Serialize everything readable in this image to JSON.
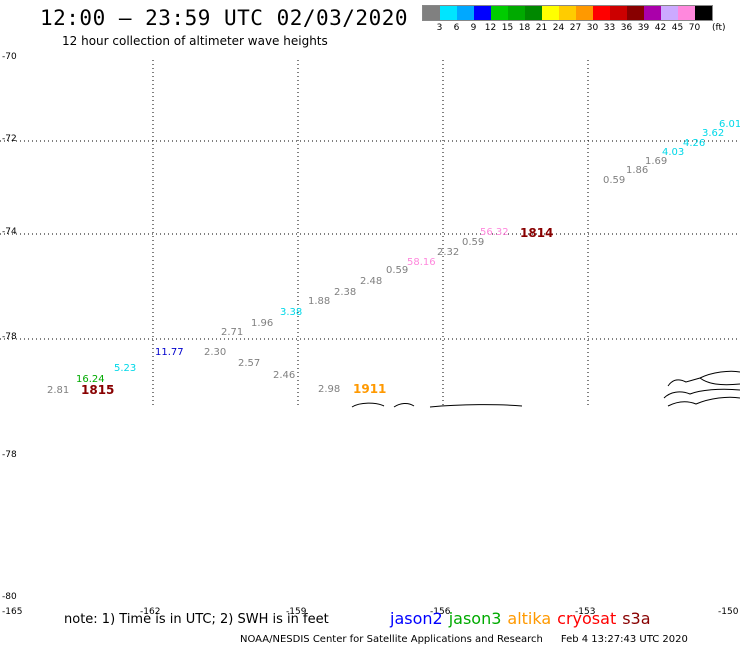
{
  "header": {
    "title": "12:00 – 23:59 UTC 02/03/2020",
    "subtitle": "12 hour collection of altimeter wave heights"
  },
  "legend": {
    "colors": [
      "#808080",
      "#00e5ff",
      "#00a8ff",
      "#0000ff",
      "#00cc00",
      "#00aa00",
      "#008800",
      "#ffff00",
      "#ffcc00",
      "#ff9900",
      "#ff0000",
      "#cc0000",
      "#880000",
      "#aa00aa",
      "#ccaaff",
      "#ff88dd",
      "#000000"
    ],
    "labels": [
      "3",
      "6",
      "9",
      "12",
      "15",
      "18",
      "21",
      "24",
      "27",
      "30",
      "33",
      "36",
      "39",
      "42",
      "45",
      "70"
    ],
    "unit": "(ft)"
  },
  "axes": {
    "lat_labels": [
      "-70",
      "-72",
      "-74",
      "-78",
      "-78",
      "-80"
    ],
    "lon_labels": [
      "-165",
      "-162",
      "-159",
      "-156",
      "-153",
      "-150"
    ]
  },
  "observations": [
    {
      "text": "2.81",
      "color": "#808080"
    },
    {
      "text": "16.24",
      "color": "#00aa00"
    },
    {
      "text": "5.23",
      "color": "#00d8e8"
    },
    {
      "text": "11.77",
      "color": "#0000cc"
    },
    {
      "text": "2.30",
      "color": "#808080"
    },
    {
      "text": "2.71",
      "color": "#808080"
    },
    {
      "text": "1.96",
      "color": "#808080"
    },
    {
      "text": "3.38",
      "color": "#00d8e8"
    },
    {
      "text": "2.57",
      "color": "#808080"
    },
    {
      "text": "2.46",
      "color": "#808080"
    },
    {
      "text": "1.88",
      "color": "#808080"
    },
    {
      "text": "2.38",
      "color": "#808080"
    },
    {
      "text": "2.48",
      "color": "#808080"
    },
    {
      "text": "0.59",
      "color": "#808080"
    },
    {
      "text": "2.98",
      "color": "#808080"
    },
    {
      "text": "58.16",
      "color": "#ff88dd"
    },
    {
      "text": "2.32",
      "color": "#808080"
    },
    {
      "text": "0.59",
      "color": "#808080"
    },
    {
      "text": "56.32",
      "color": "#ff88dd"
    },
    {
      "text": "0.59",
      "color": "#808080"
    },
    {
      "text": "1.86",
      "color": "#808080"
    },
    {
      "text": "1.69",
      "color": "#808080"
    },
    {
      "text": "4.03",
      "color": "#00d8e8"
    },
    {
      "text": "4.26",
      "color": "#00d8e8"
    },
    {
      "text": "3.62",
      "color": "#00d8e8"
    },
    {
      "text": "6.01",
      "color": "#00d8e8"
    }
  ],
  "passes": [
    {
      "text": "1815",
      "color": "#880000"
    },
    {
      "text": "1911",
      "color": "#ff9900"
    },
    {
      "text": "1814",
      "color": "#880000"
    }
  ],
  "footer": {
    "note": "note: 1) Time is in UTC; 2) SWH is in feet",
    "satellites": [
      {
        "name": "jason2",
        "color": "#0000ff"
      },
      {
        "name": "jason3",
        "color": "#00aa00"
      },
      {
        "name": "altika",
        "color": "#ff9900"
      },
      {
        "name": "cryosat",
        "color": "#ff0000"
      },
      {
        "name": "s3a",
        "color": "#880000"
      }
    ],
    "credit": "NOAA/NESDIS Center for Satellite Applications and Research",
    "timestamp": "Feb  4 13:27:43 UTC 2020"
  }
}
